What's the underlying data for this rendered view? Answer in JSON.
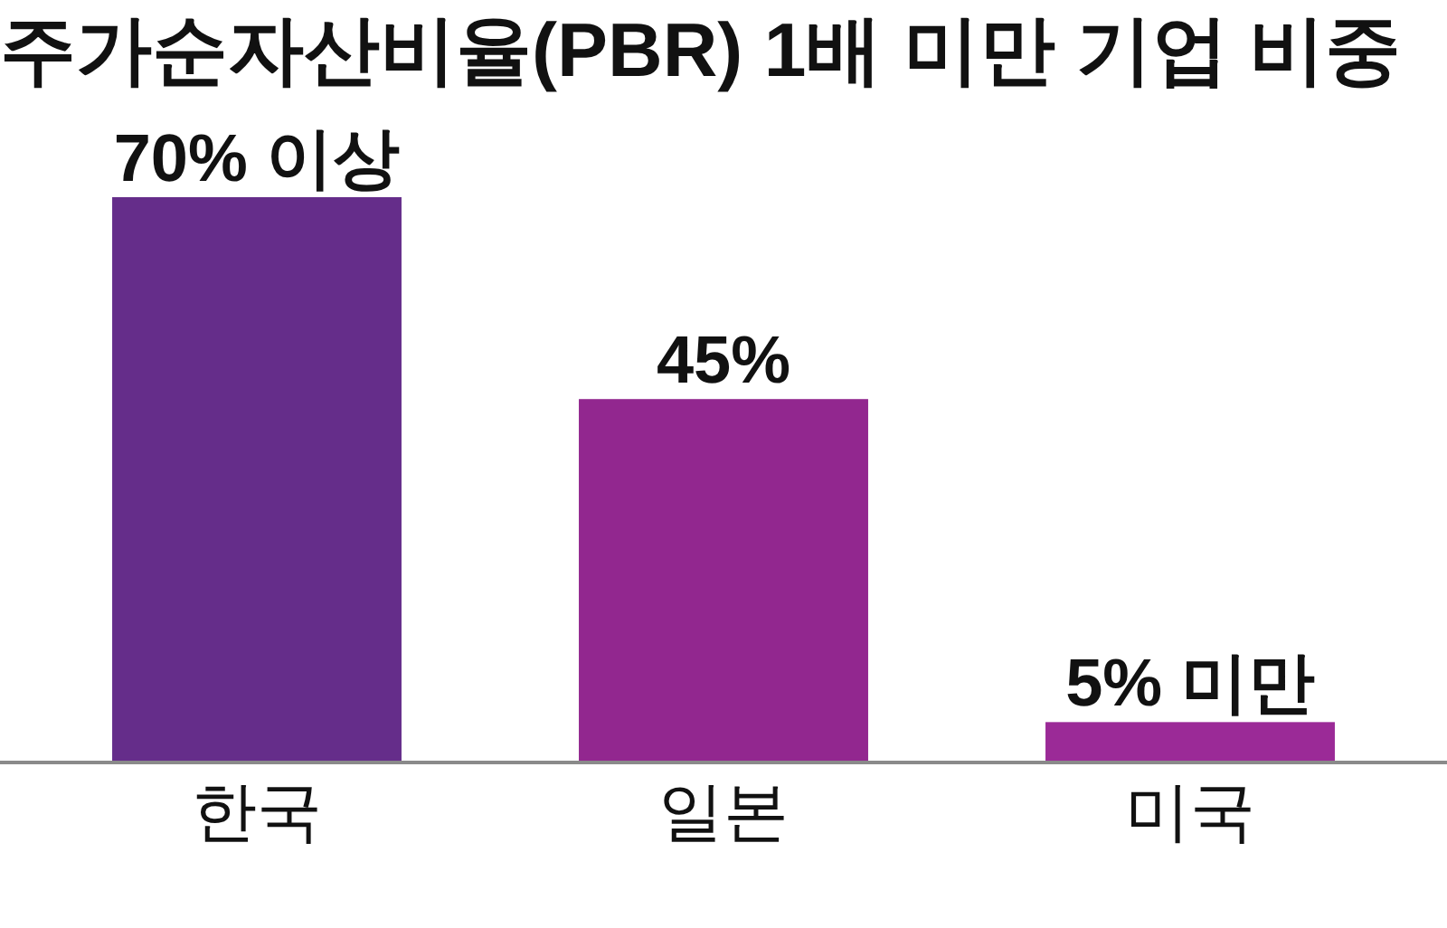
{
  "chart_data": {
    "type": "bar",
    "title": "주가순자산비율(PBR) 1배 미만 기업 비중",
    "categories": [
      "한국",
      "일본",
      "미국"
    ],
    "values": [
      70,
      45,
      5
    ],
    "colors": [
      "#652d8a",
      "#92278f",
      "#9b2a97"
    ],
    "value_labels": [
      "70% 이상",
      "45%",
      "5% 미만"
    ]
  }
}
